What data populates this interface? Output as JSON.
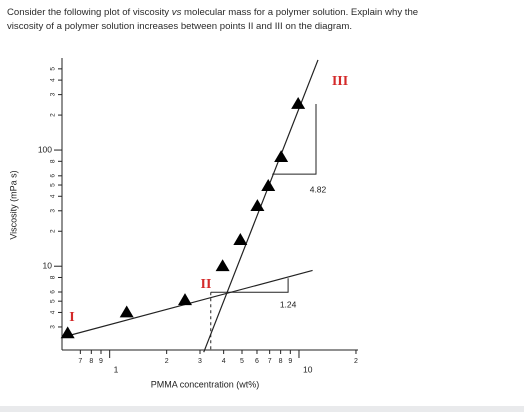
{
  "question": {
    "lines": [
      [
        "Consider the following plot of viscosity ",
        "vs",
        " molecular mass for a polymer solution. Explain why the"
      ],
      [
        "viscosity of a polymer solution increases between points II and III on the diagram."
      ]
    ]
  },
  "chart_data": {
    "type": "scatter",
    "xlabel": "PMMA concentration (wt%)",
    "ylabel": "Viscosity (mPa s)",
    "log_x": true,
    "log_y": true,
    "xlim": [
      0.56,
      20.5
    ],
    "ylim": [
      1.9,
      620
    ],
    "xticks": [
      {
        "value": 0.7,
        "label": "7"
      },
      {
        "value": 0.8,
        "label": "8"
      },
      {
        "value": 0.9,
        "label": "9"
      },
      1,
      2,
      3,
      4,
      5,
      6,
      7,
      8,
      9,
      10,
      {
        "value": 20,
        "label": "2"
      }
    ],
    "yticks": [
      3,
      4,
      5,
      6,
      8,
      10,
      {
        "value": 20,
        "label": "2"
      },
      {
        "value": 30,
        "label": "3"
      },
      {
        "value": 40,
        "label": "4"
      },
      {
        "value": 50,
        "label": "5"
      },
      {
        "value": 60,
        "label": "6"
      },
      {
        "value": 80,
        "label": "8"
      },
      100,
      {
        "value": 200,
        "label": "2"
      },
      {
        "value": 300,
        "label": "3"
      },
      {
        "value": 400,
        "label": "4"
      },
      {
        "value": 500,
        "label": "5"
      }
    ],
    "x": [
      0.6,
      1.23,
      2.5,
      3.95,
      4.9,
      6.03,
      6.88,
      8.05,
      9.9
    ],
    "series": [
      {
        "color": "#000000",
        "values": [
          2.64,
          4.0,
          5.1,
          10,
          16.8,
          32.9,
          49,
          87,
          249
        ]
      }
    ],
    "lines": [
      {
        "x": [
          0.56,
          11.8
        ],
        "y": [
          2.44,
          9.2
        ]
      },
      {
        "x": [
          3.14,
          12.6
        ],
        "y": [
          1.82,
          597
        ]
      }
    ],
    "slope_triangles": [
      {
        "x": [
          3.42,
          8.76,
          8.76
        ],
        "y": [
          5.97,
          5.97,
          7.88
        ],
        "slope": 1.24
      },
      {
        "x": [
          7.22,
          12.3,
          12.3
        ],
        "y": [
          62,
          62,
          249
        ],
        "slope": 4.82
      }
    ],
    "crossover": {
      "x": 3.42,
      "y": 5.97
    },
    "point_labels": [
      "I",
      "II",
      "III"
    ],
    "point_label_color": "#d42a2a"
  }
}
